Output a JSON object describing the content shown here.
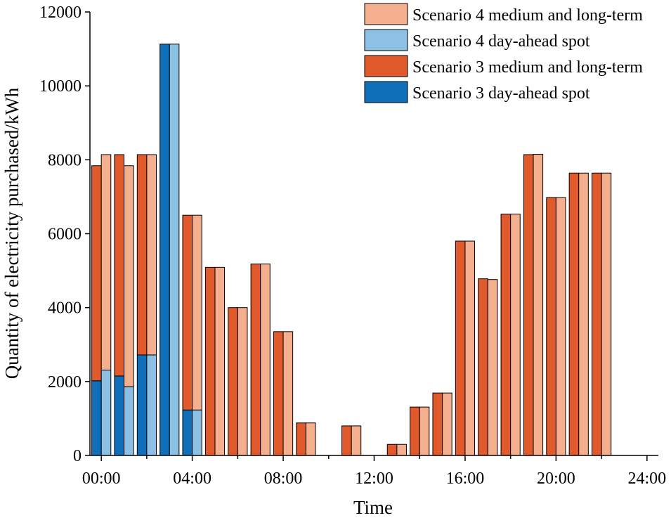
{
  "chart_data": {
    "type": "bar",
    "stacked": true,
    "title": "",
    "xlabel": "Time",
    "ylabel": "Quantity of electricity purchased/kWh",
    "ylim": [
      0,
      12000
    ],
    "xlim": [
      -0.5,
      24.5
    ],
    "yticks": [
      0,
      2000,
      4000,
      6000,
      8000,
      10000,
      12000
    ],
    "xticks": [
      {
        "value": 0,
        "label": "00:00"
      },
      {
        "value": 4,
        "label": "04:00"
      },
      {
        "value": 8,
        "label": "08:00"
      },
      {
        "value": 12,
        "label": "12:00"
      },
      {
        "value": 16,
        "label": "16:00"
      },
      {
        "value": 20,
        "label": "20:00"
      },
      {
        "value": 24,
        "label": "24:00"
      }
    ],
    "hours": [
      0,
      1,
      2,
      3,
      4,
      5,
      6,
      7,
      8,
      9,
      10,
      11,
      12,
      13,
      14,
      15,
      16,
      17,
      18,
      19,
      20,
      21,
      22,
      23
    ],
    "groups": [
      {
        "name": "Scenario 3",
        "series": [
          {
            "name": "Scenario 3 day-ahead spot",
            "color": "#0f6fb8",
            "values": [
              2020,
              2150,
              2720,
              11130,
              1230,
              0,
              0,
              0,
              0,
              0,
              0,
              0,
              0,
              0,
              0,
              0,
              0,
              0,
              0,
              0,
              0,
              0,
              0,
              0
            ]
          },
          {
            "name": "Scenario 3 medium and long-term",
            "color": "#e05a2b",
            "values": [
              5820,
              5990,
              5420,
              0,
              5270,
              5090,
              4000,
              5180,
              3350,
              880,
              0,
              800,
              0,
              300,
              1310,
              1690,
              5800,
              4780,
              6530,
              8140,
              6980,
              7640,
              7640,
              0
            ]
          }
        ]
      },
      {
        "name": "Scenario 4",
        "series": [
          {
            "name": "Scenario 4 day-ahead spot",
            "color": "#8cc0e4",
            "values": [
              2310,
              1860,
              2720,
              11130,
              1230,
              0,
              0,
              0,
              0,
              0,
              0,
              0,
              0,
              0,
              0,
              0,
              0,
              0,
              0,
              0,
              0,
              0,
              0,
              0
            ]
          },
          {
            "name": "Scenario 4 medium and long-term",
            "color": "#f4b08e",
            "values": [
              5830,
              5980,
              5420,
              0,
              5270,
              5090,
              4000,
              5180,
              3350,
              880,
              0,
              800,
              0,
              300,
              1310,
              1690,
              5800,
              4760,
              6530,
              8150,
              6980,
              7640,
              7640,
              0
            ]
          }
        ]
      }
    ],
    "legend": {
      "position": "top-right",
      "entries": [
        {
          "label": "Scenario 4 medium and long-term",
          "color": "#f4b08e"
        },
        {
          "label": "Scenario 4 day-ahead spot",
          "color": "#8cc0e4"
        },
        {
          "label": "Scenario 3 medium and long-term",
          "color": "#e05a2b"
        },
        {
          "label": "Scenario 3 day-ahead spot",
          "color": "#0f6fb8"
        }
      ]
    }
  }
}
